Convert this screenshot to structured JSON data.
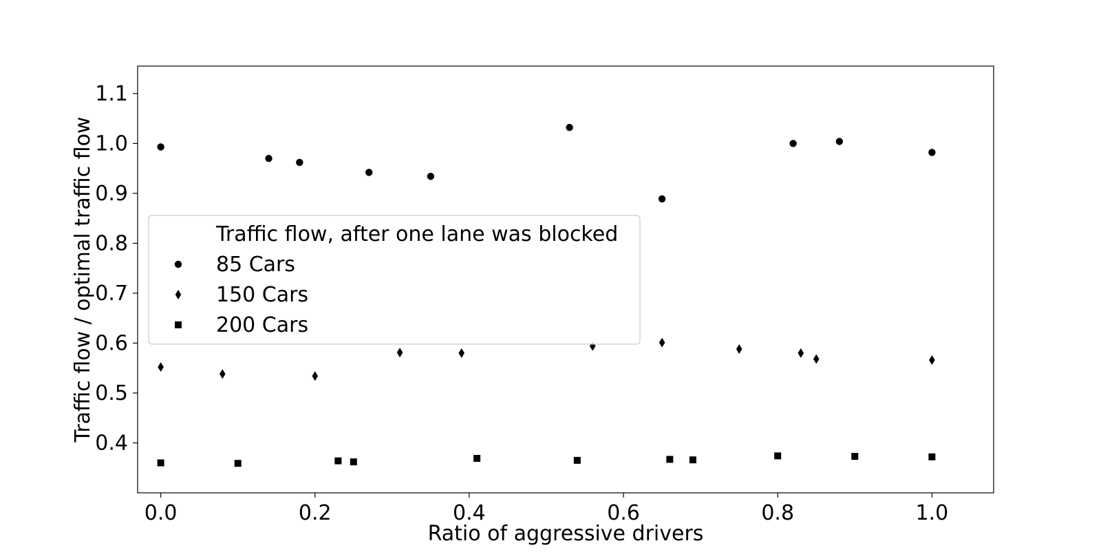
{
  "chart_data": {
    "type": "scatter",
    "title": "",
    "xlabel": "Ratio of aggressive drivers",
    "ylabel": "Traffic flow / optimal traffic flow",
    "xlim": [
      -0.03,
      1.08
    ],
    "ylim": [
      0.3,
      1.155
    ],
    "xticks": [
      "0.0",
      "0.2",
      "0.4",
      "0.6",
      "0.8",
      "1.0"
    ],
    "yticks": [
      "0.4",
      "0.5",
      "0.6",
      "0.7",
      "0.8",
      "0.9",
      "1.0",
      "1.1"
    ],
    "grid": false,
    "legend": {
      "title": "Traffic flow, after one lane was blocked",
      "position": "center-left"
    },
    "series": [
      {
        "name": "85 Cars",
        "marker": "circle",
        "color": "#000000",
        "x": [
          0.0,
          0.14,
          0.18,
          0.27,
          0.35,
          0.53,
          0.65,
          0.82,
          0.88,
          1.0
        ],
        "y": [
          0.993,
          0.97,
          0.962,
          0.942,
          0.934,
          1.032,
          0.889,
          1.0,
          1.004,
          0.982
        ]
      },
      {
        "name": "150 Cars",
        "marker": "diamond",
        "color": "#000000",
        "x": [
          0.0,
          0.08,
          0.2,
          0.31,
          0.39,
          0.56,
          0.65,
          0.75,
          0.83,
          0.85,
          1.0
        ],
        "y": [
          0.552,
          0.538,
          0.534,
          0.581,
          0.58,
          0.594,
          0.601,
          0.588,
          0.58,
          0.568,
          0.566
        ]
      },
      {
        "name": "200 Cars",
        "marker": "square",
        "color": "#000000",
        "x": [
          0.0,
          0.1,
          0.23,
          0.25,
          0.41,
          0.54,
          0.66,
          0.69,
          0.8,
          0.9,
          1.0
        ],
        "y": [
          0.36,
          0.359,
          0.364,
          0.362,
          0.369,
          0.365,
          0.367,
          0.366,
          0.374,
          0.373,
          0.372
        ]
      }
    ]
  }
}
